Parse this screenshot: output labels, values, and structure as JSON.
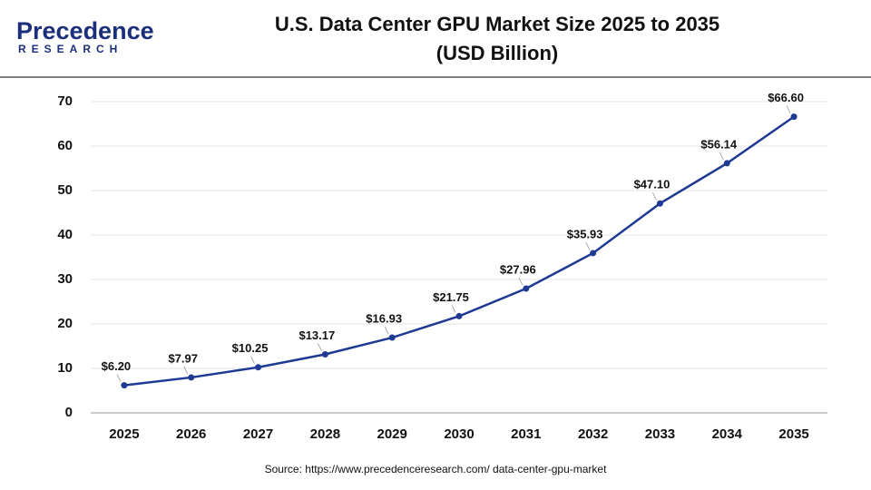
{
  "logo": {
    "name": "Precedence",
    "tagline": "RESEARCH"
  },
  "chart_data": {
    "type": "line",
    "title": "U.S. Data Center GPU Market Size 2025 to 2035",
    "subtitle": "(USD Billion)",
    "categories": [
      "2025",
      "2026",
      "2027",
      "2028",
      "2029",
      "2030",
      "2031",
      "2032",
      "2033",
      "2034",
      "2035"
    ],
    "values": [
      6.2,
      7.97,
      10.25,
      13.17,
      16.93,
      21.75,
      27.96,
      35.93,
      47.1,
      56.14,
      66.6
    ],
    "value_labels": [
      "$6.20",
      "$7.97",
      "$10.25",
      "$13.17",
      "$16.93",
      "$21.75",
      "$27.96",
      "$35.93",
      "$47.10",
      "$56.14",
      "$66.60"
    ],
    "color": "#1f3a93",
    "ylim": [
      0,
      70
    ],
    "yticks": [
      0,
      10,
      20,
      30,
      40,
      50,
      60,
      70
    ],
    "grid": true,
    "source": "Source: https://www.precedenceresearch.com/ data-center-gpu-market"
  }
}
